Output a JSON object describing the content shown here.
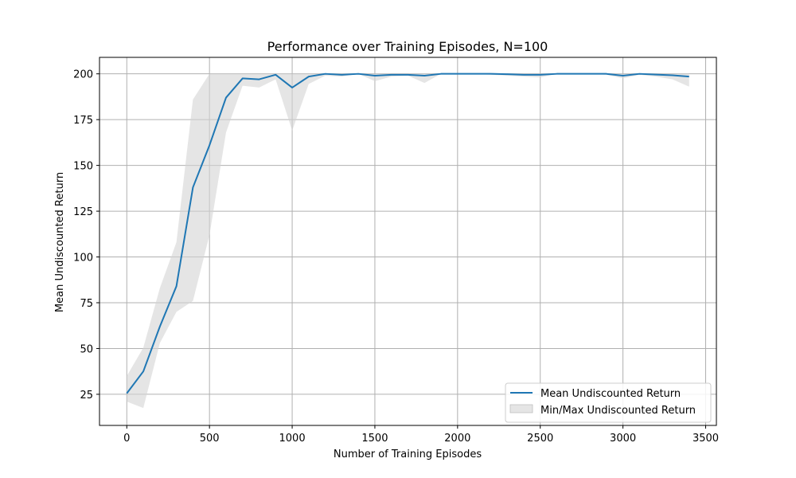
{
  "chart_data": {
    "type": "line",
    "title": "Performance over Training Episodes, N=100",
    "xlabel": "Number of Training Episodes",
    "ylabel": "Mean Undiscounted Return",
    "xlim": [
      -165,
      3565
    ],
    "ylim": [
      8,
      209
    ],
    "xticks": [
      0,
      500,
      1000,
      1500,
      2000,
      2500,
      3000,
      3500
    ],
    "yticks": [
      25,
      50,
      75,
      100,
      125,
      150,
      175,
      200
    ],
    "grid": true,
    "legend_position": "lower-right",
    "series": [
      {
        "name": "Mean Undiscounted Return",
        "color": "#1f77b4",
        "x": [
          0,
          100,
          200,
          300,
          400,
          500,
          600,
          700,
          800,
          900,
          1000,
          1100,
          1200,
          1300,
          1400,
          1500,
          1600,
          1700,
          1800,
          1900,
          2000,
          2100,
          2200,
          2300,
          2400,
          2500,
          2600,
          2700,
          2800,
          2900,
          3000,
          3100,
          3200,
          3300,
          3400
        ],
        "y": [
          25.5,
          37.5,
          62,
          84,
          138,
          161,
          187,
          197.5,
          197,
          199.5,
          192.5,
          198.5,
          200,
          199.5,
          200,
          199,
          199.5,
          199.5,
          199,
          200,
          200,
          200,
          200,
          199.8,
          199.5,
          199.5,
          200,
          200,
          200,
          200,
          199,
          200,
          199.6,
          199.2,
          198.5
        ]
      },
      {
        "name": "Min/Max Undiscounted Return",
        "type": "band",
        "color": "#d3d3d3",
        "x": [
          0,
          100,
          200,
          300,
          400,
          500,
          600,
          700,
          800,
          900,
          1000,
          1100,
          1200,
          1300,
          1400,
          1500,
          1600,
          1700,
          1800,
          1900,
          2000,
          2100,
          2200,
          2300,
          2400,
          2500,
          2600,
          2700,
          2800,
          2900,
          3000,
          3100,
          3200,
          3300,
          3400
        ],
        "y_min": [
          21,
          17.5,
          53,
          70,
          76,
          112,
          168,
          193.5,
          192.5,
          197,
          169,
          194.5,
          199,
          198.5,
          200,
          196,
          198.5,
          199,
          195,
          200,
          200,
          200,
          199.5,
          199,
          198.5,
          198,
          200,
          200,
          200,
          199.5,
          197.5,
          199.5,
          198.5,
          197,
          193
        ],
        "y_max": [
          35,
          50.5,
          83,
          108,
          186,
          200,
          200,
          200,
          200,
          200,
          200,
          200,
          200,
          200,
          200,
          200,
          200,
          200,
          200,
          200,
          200,
          200,
          200,
          200,
          200,
          200,
          200,
          200,
          200,
          200,
          200,
          200,
          200,
          200,
          200
        ]
      }
    ]
  }
}
